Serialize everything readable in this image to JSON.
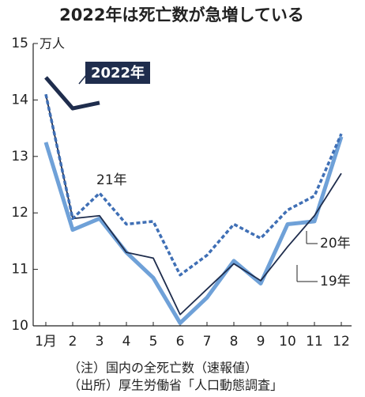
{
  "chart_data": {
    "type": "line",
    "title": "2022年は死亡数が急増している",
    "y_unit": "万人",
    "categories": [
      "1月",
      "2",
      "3",
      "4",
      "5",
      "6",
      "7",
      "8",
      "9",
      "10",
      "11",
      "12"
    ],
    "ylim": [
      10,
      15
    ],
    "yticks": [
      10,
      11,
      12,
      13,
      14,
      15
    ],
    "series": [
      {
        "name": "2022年",
        "color": "#1f2d4d",
        "values": [
          14.4,
          13.85,
          13.95,
          null,
          null,
          null,
          null,
          null,
          null,
          null,
          null,
          null
        ]
      },
      {
        "name": "21年",
        "color": "#3f6fb5",
        "values": [
          14.1,
          11.9,
          12.35,
          11.8,
          11.85,
          10.9,
          11.25,
          11.8,
          11.55,
          12.05,
          12.3,
          13.4
        ]
      },
      {
        "name": "20年",
        "color": "#6fa1d8",
        "values": [
          13.25,
          11.7,
          11.9,
          11.3,
          10.85,
          10.05,
          10.5,
          11.15,
          10.75,
          11.8,
          11.85,
          13.35
        ]
      },
      {
        "name": "19年",
        "color": "#1f2d4d",
        "values": [
          14.1,
          11.9,
          11.95,
          11.3,
          11.2,
          10.2,
          10.65,
          11.1,
          10.8,
          11.4,
          11.95,
          12.7
        ]
      }
    ],
    "notes": [
      "（注）国内の全死亡数（速報値）",
      "（出所）厚生労働省「人口動態調査」"
    ]
  }
}
